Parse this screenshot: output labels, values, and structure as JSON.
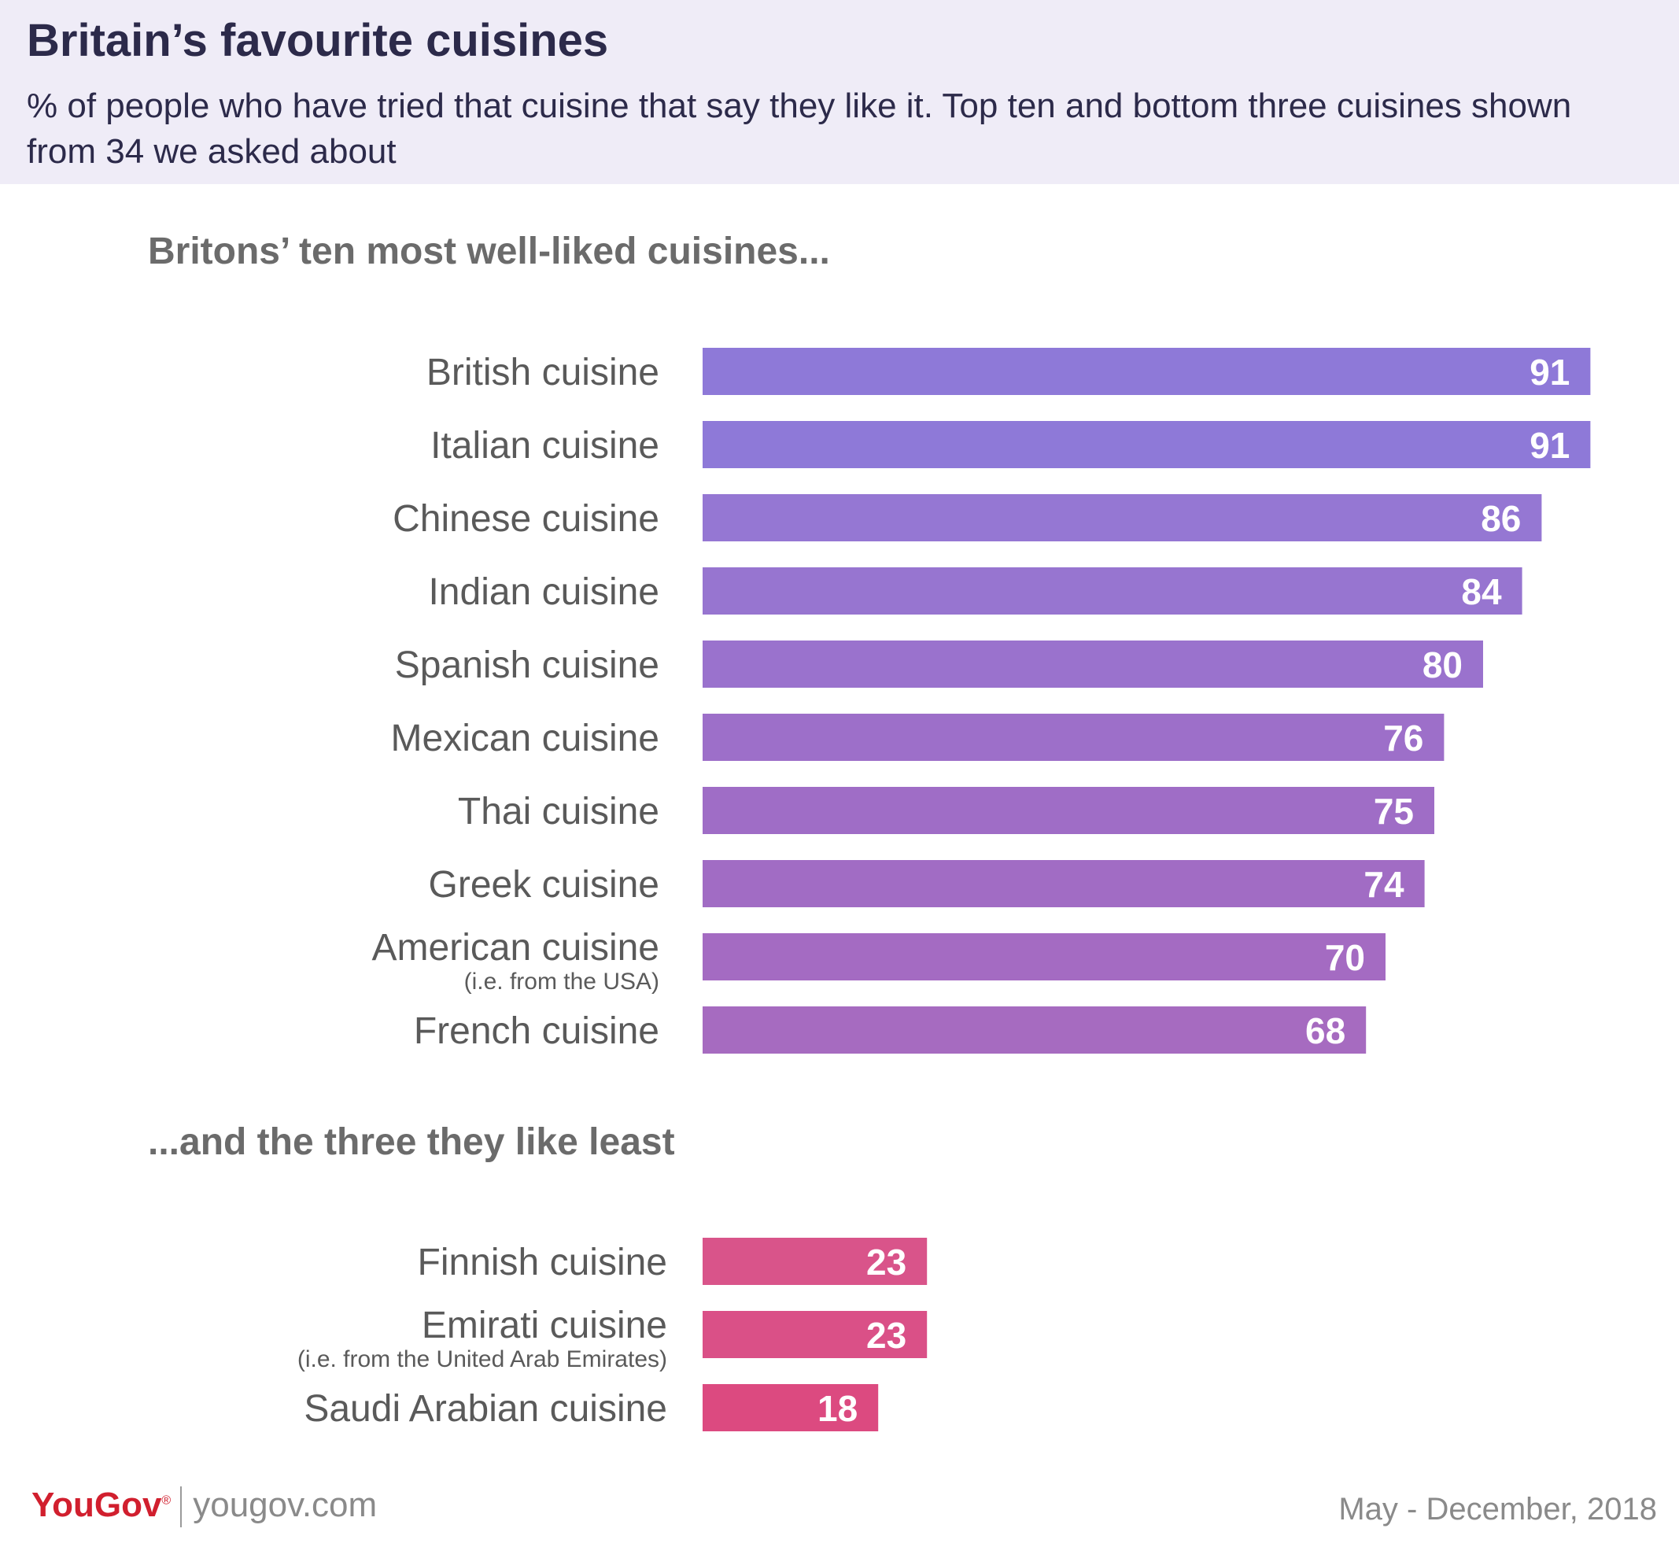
{
  "header": {
    "title": "Britain’s favourite cuisines",
    "subtitle": "% of people who have tried that cuisine that say they like it. Top ten and bottom three cuisines shown from 34 we asked about"
  },
  "chart_data": [
    {
      "type": "bar",
      "orientation": "horizontal",
      "title": "Britons’ ten most well-liked cuisines...",
      "categories": [
        "British cuisine",
        "Italian cuisine",
        "Chinese cuisine",
        "Indian cuisine",
        "Spanish cuisine",
        "Mexican cuisine",
        "Thai cuisine",
        "Greek cuisine",
        "American cuisine",
        "French cuisine"
      ],
      "category_notes": [
        "",
        "",
        "",
        "",
        "",
        "",
        "",
        "",
        "(i.e. from the USA)",
        ""
      ],
      "values": [
        91,
        91,
        86,
        84,
        80,
        76,
        75,
        74,
        70,
        68
      ],
      "colors": [
        "#8e79d8",
        "#8e79d8",
        "#9577d3",
        "#9775d0",
        "#9a72cd",
        "#9d6fc9",
        "#9f6dc6",
        "#a16cc4",
        "#a46bc2",
        "#a66bc0"
      ],
      "grid": false,
      "xlim": [
        0,
        100
      ]
    },
    {
      "type": "bar",
      "orientation": "horizontal",
      "title": "...and the three they like least",
      "categories": [
        "Finnish cuisine",
        "Emirati cuisine",
        "Saudi Arabian cuisine"
      ],
      "category_notes": [
        "",
        "(i.e. from the United Arab Emirates)",
        ""
      ],
      "values": [
        23,
        23,
        18
      ],
      "colors": [
        "#d9548a",
        "#da5087",
        "#dc4a80"
      ],
      "grid": false,
      "xlim": [
        0,
        100
      ]
    }
  ],
  "footer": {
    "brand_you": "You",
    "brand_gov": "Gov",
    "brand_mark": "®",
    "url": "yougov.com",
    "date": "May - December, 2018"
  }
}
